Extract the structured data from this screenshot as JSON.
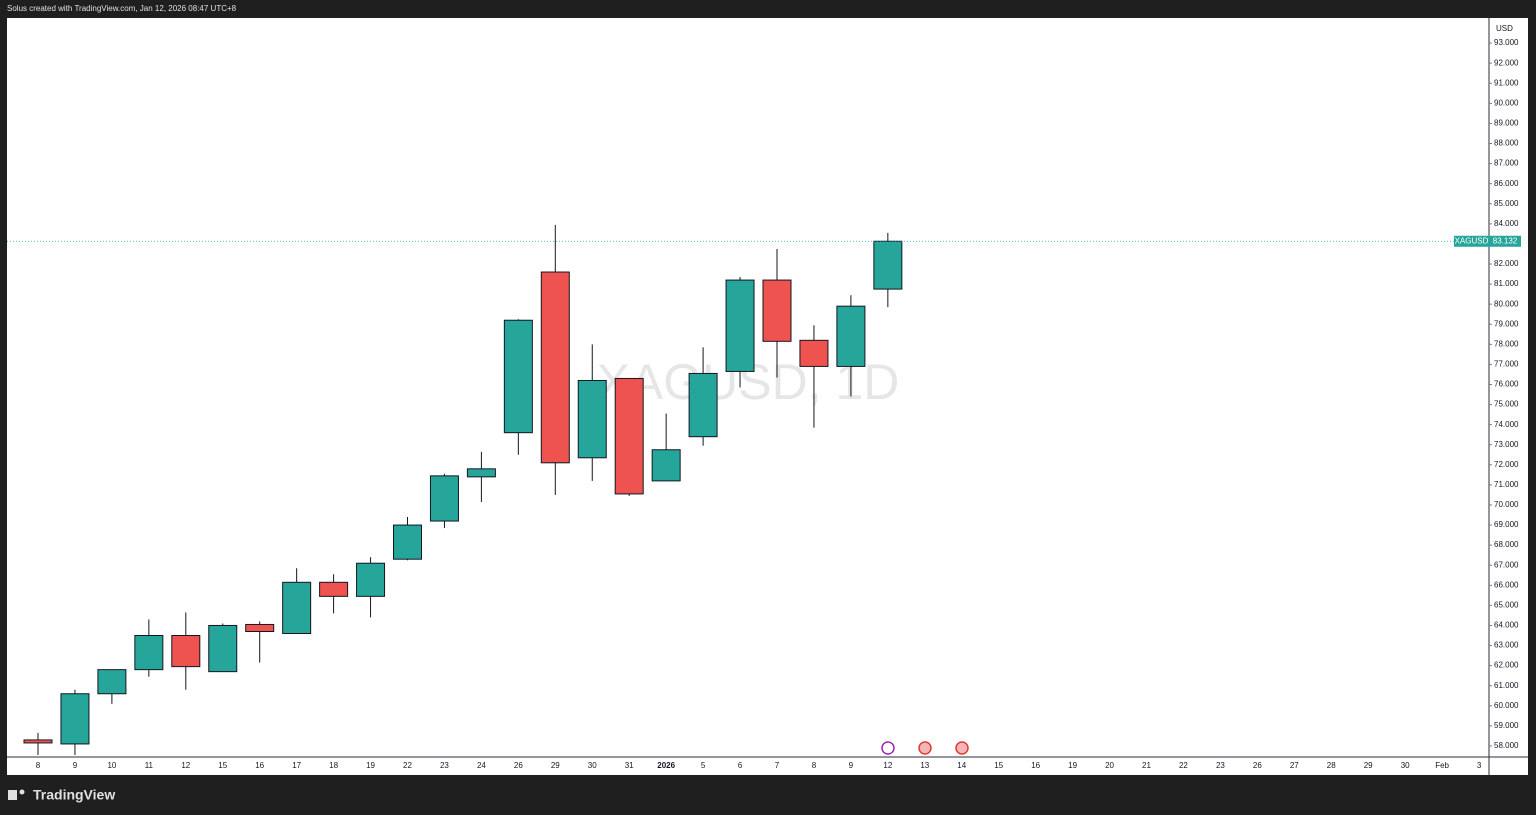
{
  "header": "Solus created with TradingView.com, Jan 12, 2026 08:47 UTC+8",
  "footer": "TradingView",
  "chart_data": {
    "type": "candlestick",
    "watermark": "XAGUSD, 1D",
    "symbol": "XAGUSD",
    "currency": "USD",
    "last_price": 83.132,
    "up_color": "#26a69a",
    "down_color": "#ef5350",
    "categories": [
      "8",
      "9",
      "10",
      "11",
      "12",
      "15",
      "16",
      "17",
      "18",
      "19",
      "22",
      "23",
      "24",
      "26",
      "29",
      "30",
      "31",
      "2026",
      "5",
      "6",
      "7",
      "8",
      "9",
      "12",
      "13",
      "14",
      "15",
      "16",
      "19",
      "20",
      "21",
      "22",
      "23",
      "26",
      "27",
      "28",
      "29",
      "30",
      "Feb",
      "3"
    ],
    "open": [
      58.3,
      58.1,
      60.6,
      61.8,
      63.5,
      61.7,
      64.05,
      63.6,
      66.15,
      65.45,
      67.3,
      69.2,
      71.4,
      73.6,
      81.6,
      72.35,
      76.3,
      71.2,
      73.4,
      76.65,
      81.2,
      78.2,
      76.9,
      80.75,
      null,
      null,
      null,
      null,
      null,
      null,
      null,
      null,
      null,
      null,
      null,
      null,
      null,
      null,
      null,
      null
    ],
    "high": [
      58.65,
      60.8,
      61.8,
      64.3,
      64.65,
      64.1,
      64.2,
      66.85,
      66.55,
      67.4,
      69.4,
      71.55,
      72.65,
      79.25,
      83.95,
      78.0,
      76.3,
      74.55,
      77.85,
      81.35,
      82.75,
      78.95,
      80.45,
      83.55,
      null,
      null,
      null,
      null,
      null,
      null,
      null,
      null,
      null,
      null,
      null,
      null,
      null,
      null,
      null,
      null
    ],
    "low": [
      57.55,
      57.55,
      60.1,
      61.45,
      60.8,
      61.7,
      62.15,
      63.6,
      64.6,
      64.4,
      67.25,
      68.85,
      70.15,
      72.5,
      70.5,
      71.2,
      70.45,
      71.2,
      72.95,
      75.85,
      76.35,
      73.85,
      75.4,
      79.85,
      null,
      null,
      null,
      null,
      null,
      null,
      null,
      null,
      null,
      null,
      null,
      null,
      null,
      null,
      null,
      null
    ],
    "close": [
      58.15,
      60.6,
      61.8,
      63.5,
      61.95,
      64.0,
      63.7,
      66.15,
      65.45,
      67.1,
      69.0,
      71.45,
      71.8,
      79.2,
      72.1,
      76.2,
      70.55,
      72.75,
      76.55,
      81.2,
      78.15,
      76.9,
      79.9,
      83.132,
      null,
      null,
      null,
      null,
      null,
      null,
      null,
      null,
      null,
      null,
      null,
      null,
      null,
      null,
      null,
      null
    ],
    "ylim": [
      57.45,
      94.25
    ],
    "yticks": [
      {
        "value": 58,
        "label": "58.000"
      },
      {
        "value": 59,
        "label": "59.000"
      },
      {
        "value": 60,
        "label": "60.000"
      },
      {
        "value": 61,
        "label": "61.000"
      },
      {
        "value": 62,
        "label": "62.000"
      },
      {
        "value": 63,
        "label": "63.000"
      },
      {
        "value": 64,
        "label": "64.000"
      },
      {
        "value": 65,
        "label": "65.000"
      },
      {
        "value": 66,
        "label": "66.000"
      },
      {
        "value": 67,
        "label": "67.000"
      },
      {
        "value": 68,
        "label": "68.000"
      },
      {
        "value": 69,
        "label": "69.000"
      },
      {
        "value": 70,
        "label": "70.000"
      },
      {
        "value": 71,
        "label": "71.000"
      },
      {
        "value": 72,
        "label": "72.000"
      },
      {
        "value": 73,
        "label": "73.000"
      },
      {
        "value": 74,
        "label": "74.000"
      },
      {
        "value": 75,
        "label": "75.000"
      },
      {
        "value": 76,
        "label": "76.000"
      },
      {
        "value": 77,
        "label": "77.000"
      },
      {
        "value": 78,
        "label": "78.000"
      },
      {
        "value": 79,
        "label": "79.000"
      },
      {
        "value": 80,
        "label": "80.000"
      },
      {
        "value": 81,
        "label": "81.000"
      },
      {
        "value": 82,
        "label": "82.000"
      },
      {
        "value": 83,
        "label": "83.000"
      },
      {
        "value": 84,
        "label": "84.000"
      },
      {
        "value": 85,
        "label": "85.000"
      },
      {
        "value": 86,
        "label": "86.000"
      },
      {
        "value": 87,
        "label": "87.000"
      },
      {
        "value": 88,
        "label": "88.000"
      },
      {
        "value": 89,
        "label": "89.000"
      },
      {
        "value": 90,
        "label": "90.000"
      },
      {
        "value": 91,
        "label": "91.000"
      },
      {
        "value": 92,
        "label": "92.000"
      },
      {
        "value": 93,
        "label": "93.000"
      }
    ]
  }
}
